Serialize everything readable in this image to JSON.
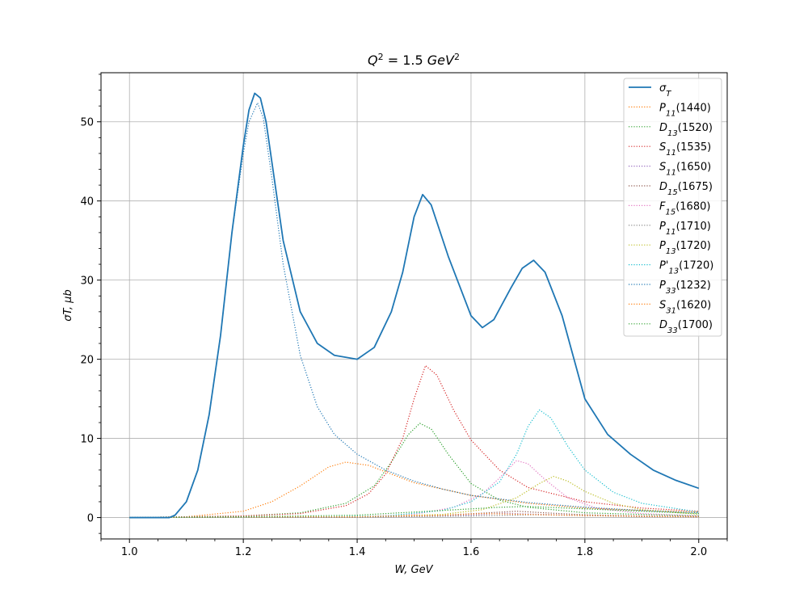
{
  "chart_data": {
    "type": "line",
    "title": "Q² = 1.5 GeV²",
    "title_parts": {
      "var": "Q",
      "sup": "2",
      "mid": " = 1.5 ",
      "unit": "GeV",
      "unit_sup": "2"
    },
    "xlabel": "W, GeV",
    "ylabel": "σT, μb",
    "xlim": [
      0.95,
      2.05
    ],
    "ylim": [
      -2.7,
      56.2
    ],
    "x_ticks": [
      1.0,
      1.2,
      1.4,
      1.6,
      1.8,
      2.0
    ],
    "x_tick_labels": [
      "1.0",
      "1.2",
      "1.4",
      "1.6",
      "1.8",
      "2.0"
    ],
    "y_ticks": [
      0,
      10,
      20,
      30,
      40,
      50
    ],
    "y_tick_labels": [
      "0",
      "10",
      "20",
      "30",
      "40",
      "50"
    ],
    "grid": true,
    "legend_position": "top-right",
    "series": [
      {
        "name": "σT",
        "base": "σ",
        "sub": "T",
        "arg": "",
        "style": "solid",
        "color": "#1f77b4",
        "points": [
          [
            1.0,
            0
          ],
          [
            1.07,
            0
          ],
          [
            1.08,
            0.3
          ],
          [
            1.1,
            2
          ],
          [
            1.12,
            6
          ],
          [
            1.14,
            13
          ],
          [
            1.16,
            23
          ],
          [
            1.18,
            36
          ],
          [
            1.2,
            47
          ],
          [
            1.21,
            51.5
          ],
          [
            1.22,
            53.6
          ],
          [
            1.23,
            53
          ],
          [
            1.24,
            50
          ],
          [
            1.25,
            45
          ],
          [
            1.27,
            35
          ],
          [
            1.3,
            26
          ],
          [
            1.33,
            22
          ],
          [
            1.36,
            20.5
          ],
          [
            1.4,
            20
          ],
          [
            1.43,
            21.5
          ],
          [
            1.46,
            26
          ],
          [
            1.48,
            31
          ],
          [
            1.5,
            38
          ],
          [
            1.515,
            40.8
          ],
          [
            1.53,
            39.5
          ],
          [
            1.56,
            33
          ],
          [
            1.6,
            25.5
          ],
          [
            1.62,
            24
          ],
          [
            1.64,
            25
          ],
          [
            1.67,
            29
          ],
          [
            1.69,
            31.5
          ],
          [
            1.71,
            32.5
          ],
          [
            1.73,
            31
          ],
          [
            1.76,
            25.5
          ],
          [
            1.8,
            15
          ],
          [
            1.84,
            10.5
          ],
          [
            1.88,
            8
          ],
          [
            1.92,
            6
          ],
          [
            1.96,
            4.7
          ],
          [
            2.0,
            3.7
          ]
        ]
      },
      {
        "name": "P11(1440)",
        "base": "P",
        "sub": "11",
        "arg": "(1440)",
        "style": "dotted",
        "color": "#ff7f0e",
        "points": [
          [
            1.0,
            0
          ],
          [
            1.1,
            0.1
          ],
          [
            1.2,
            0.8
          ],
          [
            1.25,
            2
          ],
          [
            1.3,
            4
          ],
          [
            1.35,
            6.4
          ],
          [
            1.38,
            7
          ],
          [
            1.42,
            6.6
          ],
          [
            1.46,
            5.5
          ],
          [
            1.5,
            4.4
          ],
          [
            1.6,
            2.8
          ],
          [
            1.7,
            1.8
          ],
          [
            1.8,
            1.2
          ],
          [
            1.9,
            0.9
          ],
          [
            2.0,
            0.7
          ]
        ]
      },
      {
        "name": "D13(1520)",
        "base": "D",
        "sub": "13",
        "arg": "(1520)",
        "style": "dotted",
        "color": "#2ca02c",
        "points": [
          [
            1.0,
            0
          ],
          [
            1.2,
            0.2
          ],
          [
            1.3,
            0.6
          ],
          [
            1.38,
            1.8
          ],
          [
            1.43,
            4
          ],
          [
            1.46,
            7
          ],
          [
            1.49,
            10.5
          ],
          [
            1.51,
            11.9
          ],
          [
            1.53,
            11.2
          ],
          [
            1.56,
            8
          ],
          [
            1.6,
            4.3
          ],
          [
            1.65,
            2.2
          ],
          [
            1.7,
            1.3
          ],
          [
            1.8,
            0.6
          ],
          [
            1.9,
            0.4
          ],
          [
            2.0,
            0.2
          ]
        ]
      },
      {
        "name": "S11(1535)",
        "base": "S",
        "sub": "11",
        "arg": "(1535)",
        "style": "dotted",
        "color": "#d62728",
        "points": [
          [
            1.0,
            0
          ],
          [
            1.2,
            0.2
          ],
          [
            1.3,
            0.5
          ],
          [
            1.38,
            1.5
          ],
          [
            1.42,
            3
          ],
          [
            1.45,
            5.5
          ],
          [
            1.48,
            10
          ],
          [
            1.5,
            15
          ],
          [
            1.52,
            19.2
          ],
          [
            1.54,
            18
          ],
          [
            1.57,
            13.5
          ],
          [
            1.6,
            9.8
          ],
          [
            1.65,
            6
          ],
          [
            1.7,
            3.8
          ],
          [
            1.8,
            2
          ],
          [
            1.9,
            1.2
          ],
          [
            2.0,
            0.8
          ]
        ]
      },
      {
        "name": "S11(1650)",
        "base": "S",
        "sub": "11",
        "arg": "(1650)",
        "style": "dotted",
        "color": "#9467bd",
        "points": [
          [
            1.0,
            0
          ],
          [
            1.4,
            0.05
          ],
          [
            1.55,
            0.2
          ],
          [
            1.62,
            0.4
          ],
          [
            1.66,
            0.55
          ],
          [
            1.7,
            0.45
          ],
          [
            1.8,
            0.25
          ],
          [
            1.9,
            0.15
          ],
          [
            2.0,
            0.1
          ]
        ]
      },
      {
        "name": "D15(1675)",
        "base": "D",
        "sub": "15",
        "arg": "(1675)",
        "style": "dotted",
        "color": "#8c564b",
        "points": [
          [
            1.0,
            0
          ],
          [
            1.4,
            0.05
          ],
          [
            1.55,
            0.3
          ],
          [
            1.63,
            0.6
          ],
          [
            1.68,
            0.8
          ],
          [
            1.73,
            0.6
          ],
          [
            1.8,
            0.35
          ],
          [
            1.9,
            0.2
          ],
          [
            2.0,
            0.1
          ]
        ]
      },
      {
        "name": "F15(1680)",
        "base": "F",
        "sub": "15",
        "arg": "(1680)",
        "style": "dotted",
        "color": "#e377c2",
        "points": [
          [
            1.0,
            0
          ],
          [
            1.4,
            0.1
          ],
          [
            1.5,
            0.4
          ],
          [
            1.57,
            1.3
          ],
          [
            1.62,
            3
          ],
          [
            1.65,
            5
          ],
          [
            1.68,
            7.2
          ],
          [
            1.7,
            6.8
          ],
          [
            1.73,
            4.8
          ],
          [
            1.77,
            2.5
          ],
          [
            1.82,
            1.2
          ],
          [
            1.9,
            0.5
          ],
          [
            2.0,
            0.2
          ]
        ]
      },
      {
        "name": "P11(1710)",
        "base": "P",
        "sub": "11",
        "arg": "(1710)",
        "style": "dotted",
        "color": "#7f7f7f",
        "points": [
          [
            1.0,
            0
          ],
          [
            1.4,
            0.05
          ],
          [
            1.6,
            0.2
          ],
          [
            1.71,
            0.35
          ],
          [
            1.8,
            0.25
          ],
          [
            1.9,
            0.12
          ],
          [
            2.0,
            0.08
          ]
        ]
      },
      {
        "name": "P13(1720)",
        "base": "P",
        "sub": "13",
        "arg": "(1720)",
        "style": "dotted",
        "color": "#bcbd22",
        "points": [
          [
            1.0,
            0
          ],
          [
            1.4,
            0.1
          ],
          [
            1.55,
            0.4
          ],
          [
            1.62,
            1
          ],
          [
            1.68,
            2.5
          ],
          [
            1.72,
            4.3
          ],
          [
            1.745,
            5.2
          ],
          [
            1.77,
            4.6
          ],
          [
            1.8,
            3.3
          ],
          [
            1.85,
            1.8
          ],
          [
            1.9,
            1
          ],
          [
            2.0,
            0.4
          ]
        ]
      },
      {
        "name": "P'13(1720)",
        "base": "P'",
        "sub": "13",
        "arg": "(1720)",
        "style": "dotted",
        "color": "#17becf",
        "points": [
          [
            1.0,
            0
          ],
          [
            1.3,
            0.05
          ],
          [
            1.45,
            0.2
          ],
          [
            1.55,
            0.9
          ],
          [
            1.6,
            2
          ],
          [
            1.65,
            4.5
          ],
          [
            1.68,
            8
          ],
          [
            1.7,
            11.5
          ],
          [
            1.72,
            13.6
          ],
          [
            1.74,
            12.6
          ],
          [
            1.77,
            9
          ],
          [
            1.8,
            6
          ],
          [
            1.85,
            3.2
          ],
          [
            1.9,
            1.8
          ],
          [
            2.0,
            0.7
          ]
        ]
      },
      {
        "name": "P33(1232)",
        "base": "P",
        "sub": "33",
        "arg": "(1232)",
        "style": "dotted",
        "color": "#1f77b4",
        "points": [
          [
            1.0,
            0
          ],
          [
            1.07,
            0
          ],
          [
            1.08,
            0.3
          ],
          [
            1.1,
            2
          ],
          [
            1.12,
            6
          ],
          [
            1.14,
            13
          ],
          [
            1.16,
            23
          ],
          [
            1.18,
            36
          ],
          [
            1.2,
            46
          ],
          [
            1.21,
            50
          ],
          [
            1.225,
            52.4
          ],
          [
            1.235,
            50.5
          ],
          [
            1.25,
            43
          ],
          [
            1.27,
            32
          ],
          [
            1.3,
            20.5
          ],
          [
            1.33,
            14
          ],
          [
            1.36,
            10.5
          ],
          [
            1.4,
            8
          ],
          [
            1.45,
            6
          ],
          [
            1.5,
            4.6
          ],
          [
            1.55,
            3.6
          ],
          [
            1.6,
            2.8
          ],
          [
            1.7,
            1.9
          ],
          [
            1.8,
            1.3
          ],
          [
            1.9,
            0.9
          ],
          [
            2.0,
            0.6
          ]
        ]
      },
      {
        "name": "S31(1620)",
        "base": "S",
        "sub": "31",
        "arg": "(1620)",
        "style": "dotted",
        "color": "#ff7f0e",
        "points": [
          [
            1.0,
            0
          ],
          [
            1.4,
            0.1
          ],
          [
            1.55,
            0.3
          ],
          [
            1.62,
            0.5
          ],
          [
            1.7,
            0.4
          ],
          [
            1.8,
            0.25
          ],
          [
            1.9,
            0.15
          ],
          [
            2.0,
            0.1
          ]
        ]
      },
      {
        "name": "D33(1700)",
        "base": "D",
        "sub": "33",
        "arg": "(1700)",
        "style": "dotted",
        "color": "#2ca02c",
        "points": [
          [
            1.0,
            0
          ],
          [
            1.2,
            0.1
          ],
          [
            1.4,
            0.3
          ],
          [
            1.55,
            0.9
          ],
          [
            1.65,
            1.3
          ],
          [
            1.7,
            1.4
          ],
          [
            1.8,
            1.1
          ],
          [
            1.9,
            0.8
          ],
          [
            2.0,
            0.5
          ]
        ]
      }
    ]
  }
}
